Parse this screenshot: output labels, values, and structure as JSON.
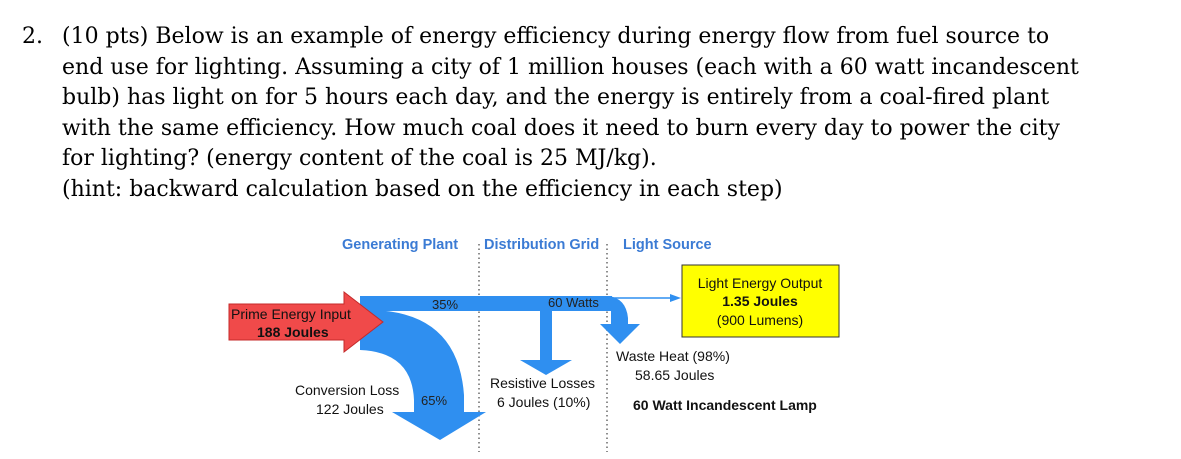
{
  "question": {
    "number": "2.",
    "lines": [
      "(10 pts) Below is an example of energy efficiency during energy flow from fuel source to",
      "end use for lighting. Assuming a city of 1 million houses (each with a 60 watt incandescent",
      "bulb) has light on for 5 hours each day, and the energy is entirely from a coal-fired plant",
      "with the same efficiency. How much coal does it need to burn every day to power the city",
      "for lighting? (energy content of the coal is 25 MJ/kg).",
      "(hint: backward calculation based on the efficiency in each step)"
    ]
  },
  "diagram": {
    "headers": {
      "generating_plant": "Generating Plant",
      "distribution_grid": "Distribution Grid",
      "light_source": "Light Source"
    },
    "prime_input": {
      "line1": "Prime Energy Input",
      "line2": "188 Joules"
    },
    "flow_labels": {
      "pct_35": "35%",
      "watts_60": "60 Watts",
      "pct_65": "65%"
    },
    "conversion_loss": {
      "line1": "Conversion Loss",
      "line2": "122 Joules"
    },
    "resistive_losses": {
      "line1": "Resistive Losses",
      "line2": "6 Joules (10%)"
    },
    "waste_heat": {
      "line1": "Waste Heat (98%)",
      "line2": "58.65 Joules"
    },
    "light_output": {
      "line1": "Light Energy Output",
      "line2": "1.35 Joules",
      "line3": "(900 Lumens)"
    },
    "lamp_label": "60 Watt Incandescent Lamp",
    "colors": {
      "header_text": "#3b7bd4",
      "flow_blue": "#2f8ff0",
      "input_red": "#f04a4a",
      "output_yellow": "#ffff00"
    }
  }
}
